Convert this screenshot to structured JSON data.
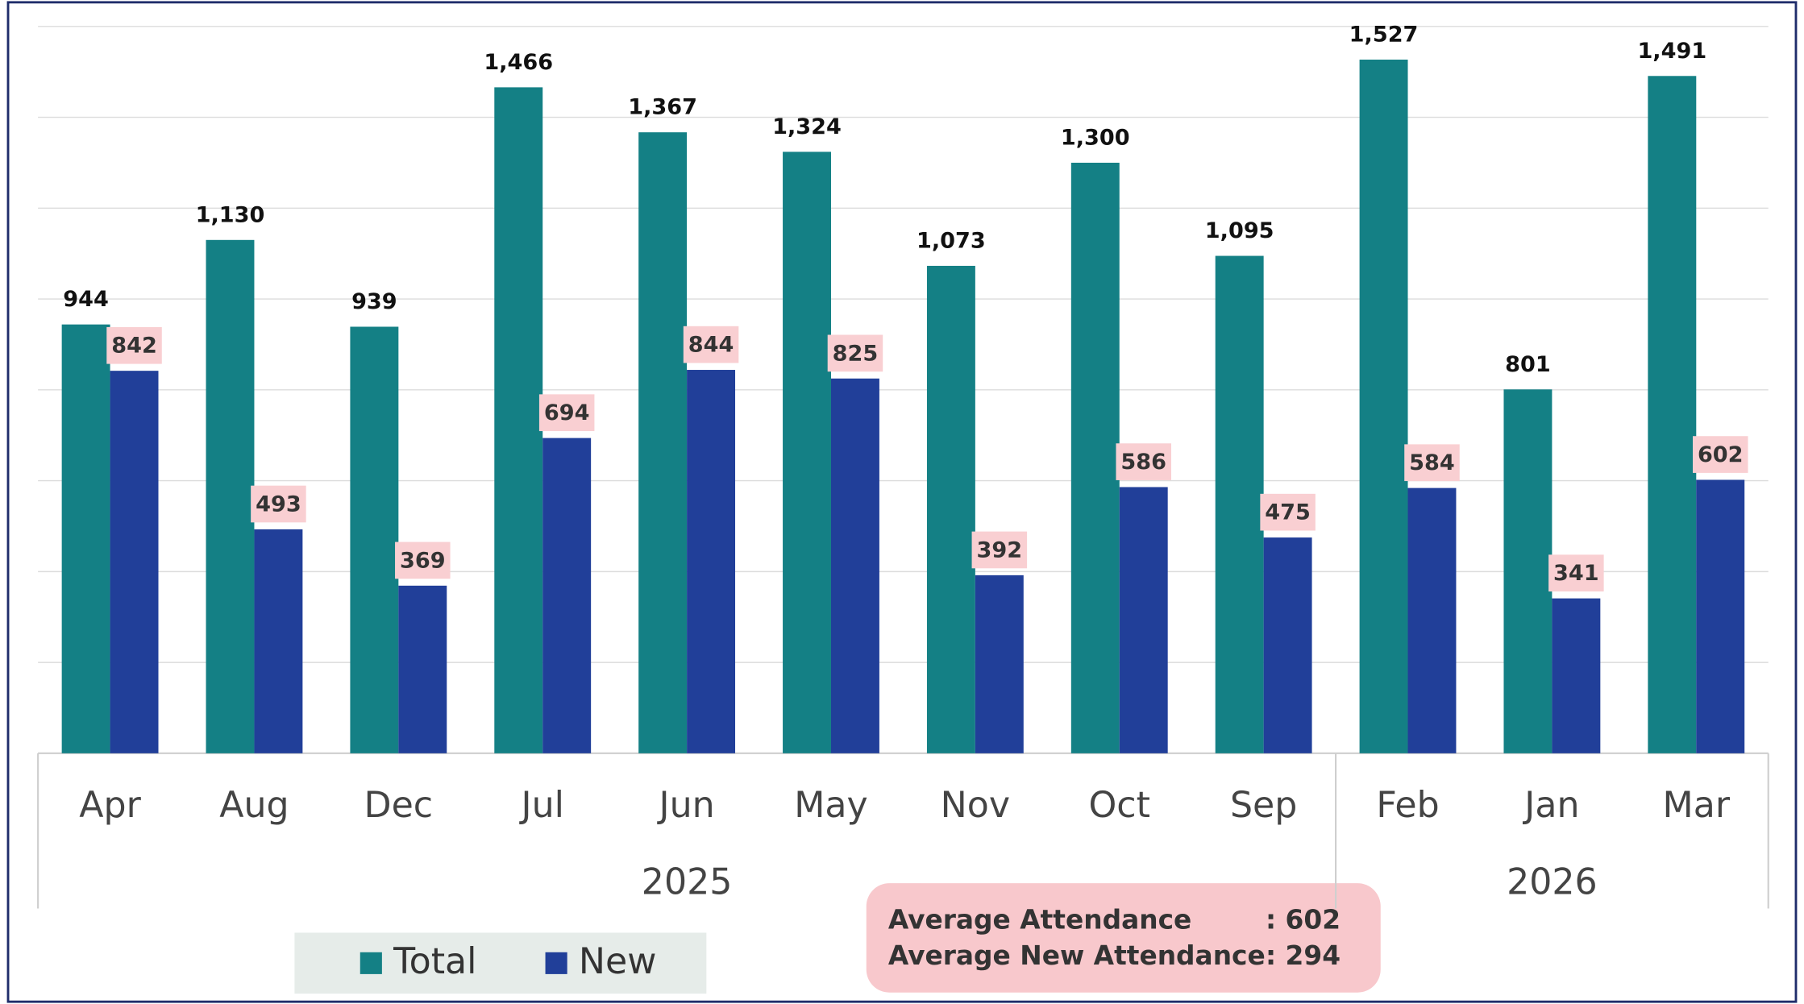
{
  "chart_data": {
    "type": "bar",
    "categories": [
      "Apr",
      "Aug",
      "Dec",
      "Jul",
      "Jun",
      "May",
      "Nov",
      "Oct",
      "Sep",
      "Feb",
      "Jan",
      "Mar"
    ],
    "years": [
      "2025",
      "2025",
      "2025",
      "2025",
      "2025",
      "2025",
      "2025",
      "2025",
      "2025",
      "2026",
      "2026",
      "2026"
    ],
    "series": [
      {
        "name": "Total",
        "color": "#148085",
        "values": [
          944,
          1130,
          939,
          1466,
          1367,
          1324,
          1073,
          1300,
          1095,
          1527,
          801,
          1491
        ],
        "value_labels": [
          "944",
          "1,130",
          "939",
          "1,466",
          "1,367",
          "1,324",
          "1,073",
          "1,300",
          "1,095",
          "1,527",
          "801",
          "1,491"
        ]
      },
      {
        "name": "New",
        "color": "#213f99",
        "values": [
          842,
          493,
          369,
          694,
          844,
          825,
          392,
          586,
          475,
          584,
          341,
          602
        ]
      }
    ],
    "ylim": [
      0,
      1600
    ],
    "yticks": [
      0,
      200,
      400,
      600,
      800,
      1000,
      1200,
      1400,
      1600
    ],
    "grid": true,
    "stats": [
      {
        "label": "Average Attendance",
        "value": ": 602"
      },
      {
        "label": "Average New Attendance",
        "value": ": 294"
      }
    ]
  }
}
